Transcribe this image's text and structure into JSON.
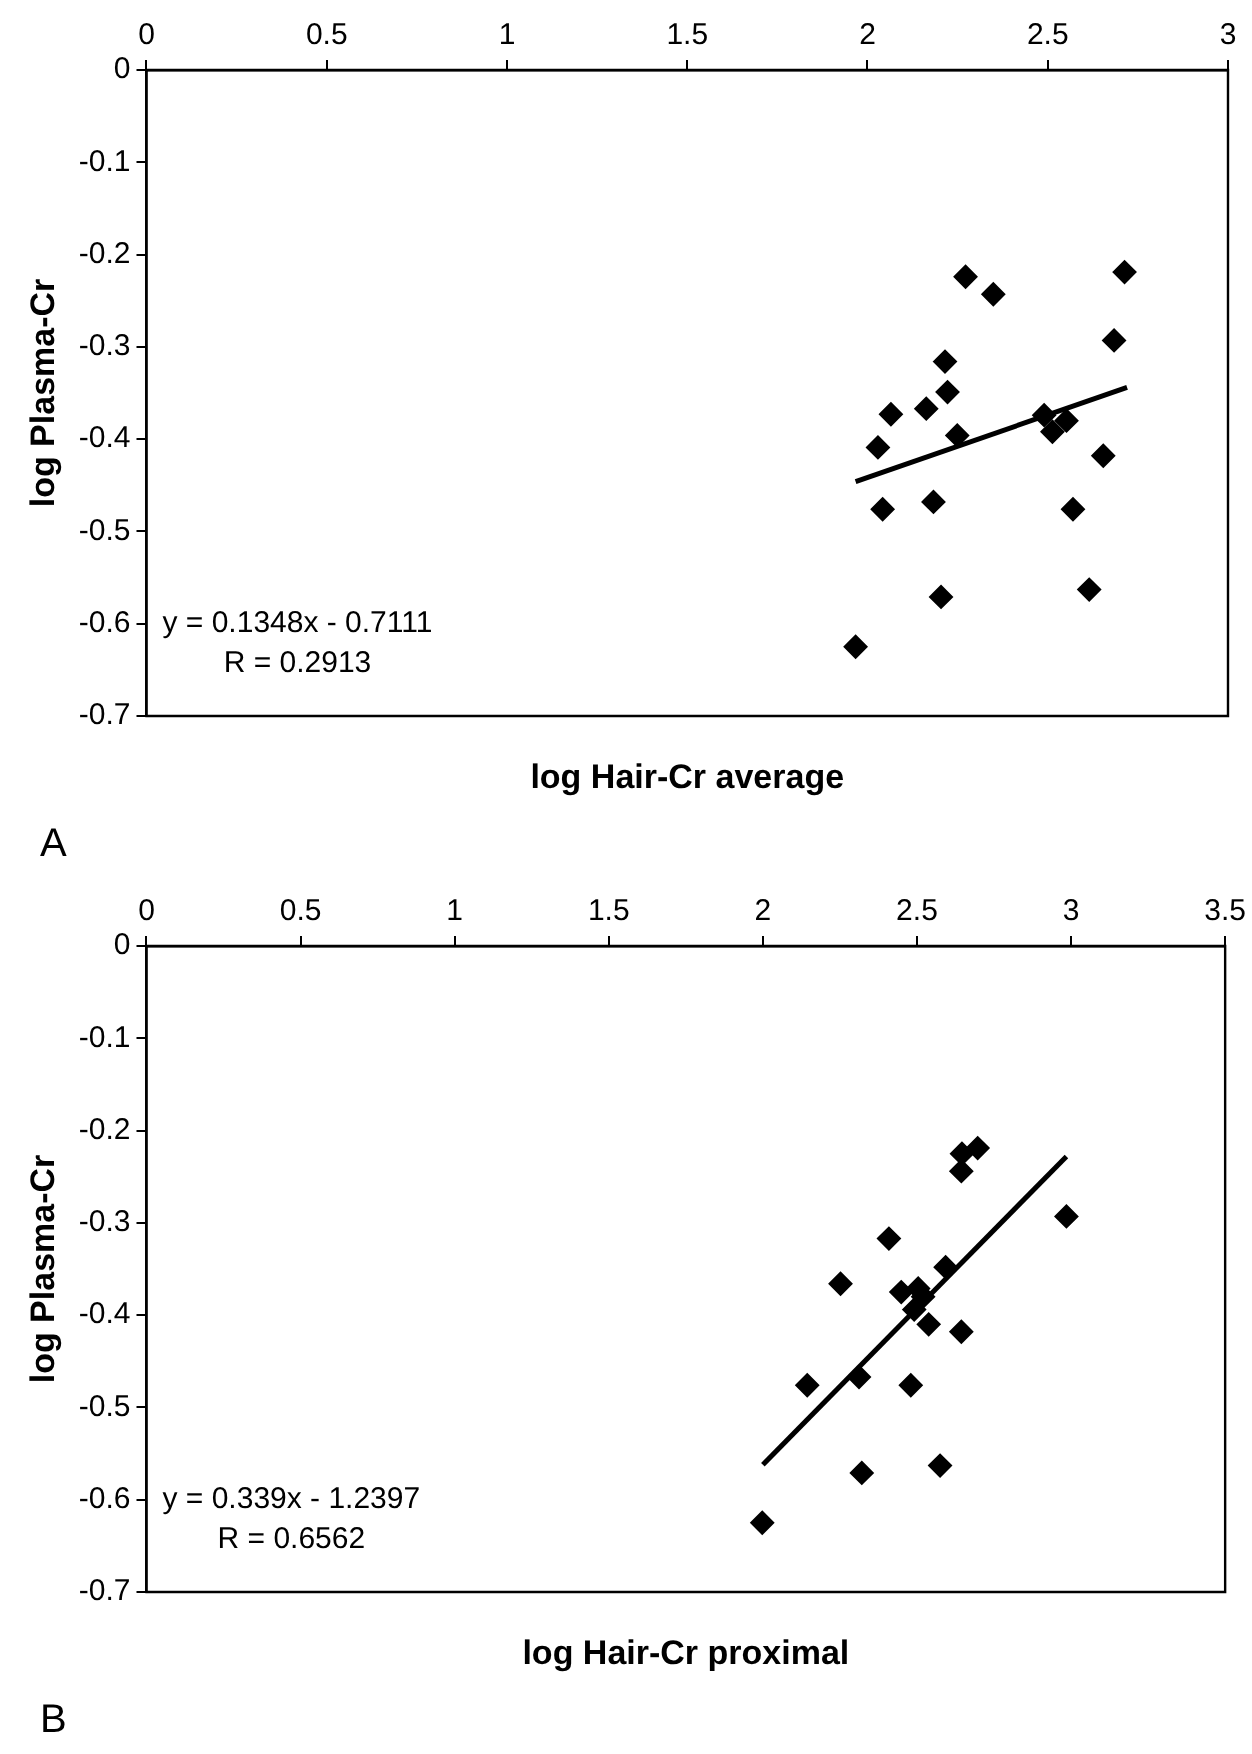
{
  "chart_data": [
    {
      "type": "scatter",
      "xlabel": "log Hair-Cr average",
      "ylabel": "log Plasma-Cr",
      "xlim": [
        0,
        3
      ],
      "xticks": [
        0,
        0.5,
        1,
        1.5,
        2,
        2.5,
        3
      ],
      "ylim": [
        -0.7,
        0
      ],
      "yticks": [
        0,
        -0.1,
        -0.2,
        -0.3,
        -0.4,
        -0.5,
        -0.6,
        -0.7
      ],
      "marker": "diamond",
      "annotations": [
        "y = 0.1348x - 0.7111",
        "R = 0.2913",
        "A"
      ],
      "series": [
        {
          "color": "#000000",
          "x": [
            1.967,
            2.029,
            2.065,
            2.042,
            2.163,
            2.183,
            2.204,
            2.215,
            2.222,
            2.249,
            2.272,
            2.349,
            2.49,
            2.513,
            2.552,
            2.57,
            2.615,
            2.654,
            2.684,
            2.713
          ],
          "values": [
            -0.625,
            -0.409,
            -0.373,
            -0.476,
            -0.367,
            -0.468,
            -0.571,
            -0.316,
            -0.349,
            -0.396,
            -0.224,
            -0.243,
            -0.374,
            -0.392,
            -0.38,
            -0.476,
            -0.563,
            -0.418,
            -0.293,
            -0.219
          ]
        },
        {
          "type": "line",
          "color": "#000000",
          "marker": "none",
          "x": [
            1.967,
            2.72
          ],
          "values": [
            -0.446,
            -0.344
          ]
        }
      ]
    },
    {
      "type": "scatter",
      "xlabel": "log Hair-Cr proximal",
      "ylabel": "log Plasma-Cr",
      "xlim": [
        0,
        3.5
      ],
      "xticks": [
        0,
        0.5,
        1,
        1.5,
        2,
        2.5,
        3,
        3.5
      ],
      "ylim": [
        -0.7,
        0
      ],
      "yticks": [
        0,
        -0.1,
        -0.2,
        -0.3,
        -0.4,
        -0.5,
        -0.6,
        -0.7
      ],
      "marker": "diamond",
      "annotations": [
        "y = 0.339x - 1.2397",
        "R = 0.6562",
        "B"
      ],
      "series": [
        {
          "color": "#000000",
          "x": [
            1.998,
            2.144,
            2.252,
            2.312,
            2.321,
            2.409,
            2.449,
            2.48,
            2.491,
            2.504,
            2.52,
            2.538,
            2.575,
            2.593,
            2.644,
            2.644,
            2.646,
            2.697,
            2.985
          ],
          "values": [
            -0.625,
            -0.476,
            -0.366,
            -0.467,
            -0.571,
            -0.317,
            -0.375,
            -0.476,
            -0.394,
            -0.371,
            -0.38,
            -0.41,
            -0.563,
            -0.348,
            -0.418,
            -0.244,
            -0.225,
            -0.219,
            -0.293
          ]
        },
        {
          "type": "line",
          "color": "#000000",
          "marker": "none",
          "x": [
            2.0,
            2.985
          ],
          "values": [
            -0.562,
            -0.228
          ]
        }
      ]
    }
  ]
}
